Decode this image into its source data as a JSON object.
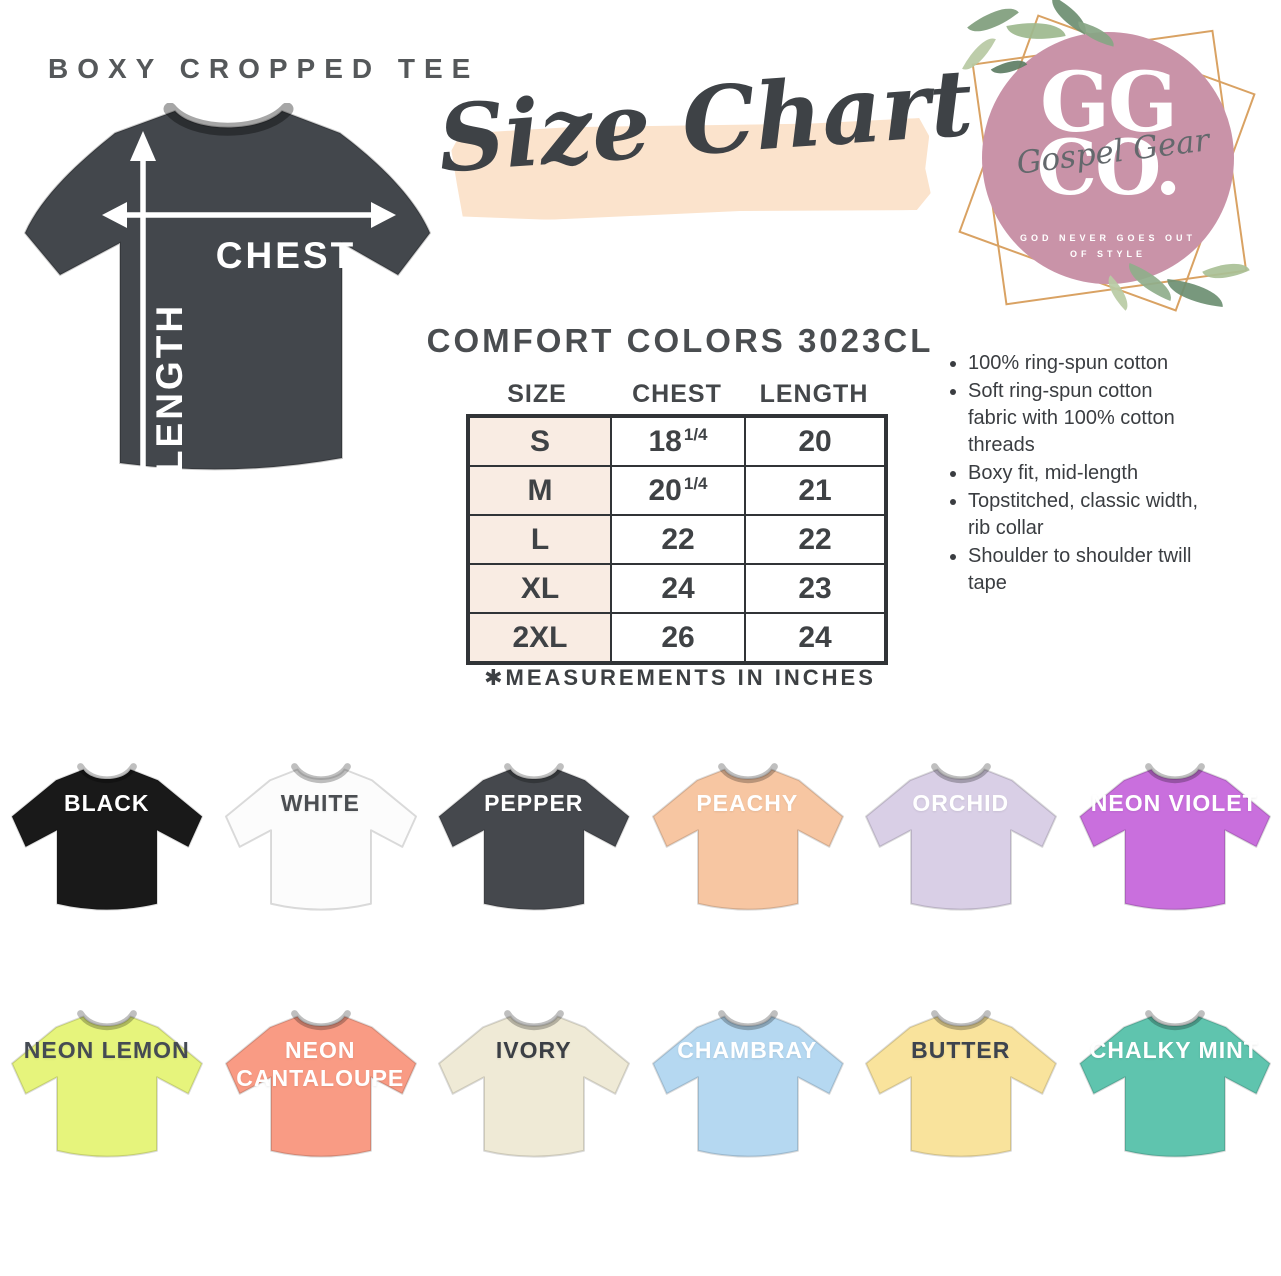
{
  "page": {
    "title": "BOXY CROPPED TEE"
  },
  "header": {
    "script_title": "Size Chart"
  },
  "diagram": {
    "chest_label": "CHEST",
    "length_label": "LENGTH"
  },
  "logo": {
    "initials_top": "GG",
    "initials_bottom": "CO.",
    "script": "Gospel Gear",
    "tagline_line1": "GOD NEVER GOES OUT",
    "tagline_line2": "OF STYLE"
  },
  "size_chart": {
    "product_title": "COMFORT COLORS 3023CL",
    "columns": [
      "SIZE",
      "CHEST",
      "LENGTH"
    ],
    "rows": [
      {
        "size": "S",
        "chest": "18",
        "chest_frac": "1/4",
        "length": "20"
      },
      {
        "size": "M",
        "chest": "20",
        "chest_frac": "1/4",
        "length": "21"
      },
      {
        "size": "L",
        "chest": "22",
        "chest_frac": "",
        "length": "22"
      },
      {
        "size": "XL",
        "chest": "24",
        "chest_frac": "",
        "length": "23"
      },
      {
        "size": "2XL",
        "chest": "26",
        "chest_frac": "",
        "length": "24"
      }
    ],
    "footnote": "✱MEASUREMENTS IN INCHES"
  },
  "features": [
    "100% ring-spun cotton",
    "Soft ring-spun cotton fabric with 100% cotton threads",
    "Boxy fit, mid-length",
    "Topstitched, classic width, rib collar",
    "Shoulder to shoulder twill tape"
  ],
  "swatches": {
    "rows": [
      [
        {
          "name": "BLACK",
          "color": "#191919",
          "text_color": "#ffffff"
        },
        {
          "name": "WHITE",
          "color": "#fcfcfc",
          "text_color": "#4b4e52"
        },
        {
          "name": "PEPPER",
          "color": "#45484d",
          "text_color": "#ffffff"
        },
        {
          "name": "PEACHY",
          "color": "#f7c6a2",
          "text_color": "#ffffff"
        },
        {
          "name": "ORCHID",
          "color": "#d9cfe6",
          "text_color": "#ffffff"
        },
        {
          "name": "NEON VIOLET",
          "color": "#c96fdd",
          "text_color": "#ffffff"
        }
      ],
      [
        {
          "name": "NEON LEMON",
          "color": "#e6f47c",
          "text_color": "#454b53"
        },
        {
          "name": "NEON CANTALOUPE",
          "color": "#f99b84",
          "text_color": "#ffffff"
        },
        {
          "name": "IVORY",
          "color": "#efead6",
          "text_color": "#3b3f45"
        },
        {
          "name": "CHAMBRAY",
          "color": "#b5d8f1",
          "text_color": "#ffffff"
        },
        {
          "name": "BUTTER",
          "color": "#f9e39c",
          "text_color": "#3d434e"
        },
        {
          "name": "CHALKY MINT",
          "color": "#5fc4ae",
          "text_color": "#ffffff"
        }
      ]
    ]
  },
  "chart_data": {
    "type": "table",
    "title": "COMFORT COLORS 3023CL",
    "columns": [
      "SIZE",
      "CHEST",
      "LENGTH"
    ],
    "rows": [
      [
        "S",
        "18 1/4",
        "20"
      ],
      [
        "M",
        "20 1/4",
        "21"
      ],
      [
        "L",
        "22",
        "22"
      ],
      [
        "XL",
        "24",
        "23"
      ],
      [
        "2XL",
        "26",
        "24"
      ]
    ],
    "units": "inches"
  },
  "theme": {
    "brush": "#fbe3cc",
    "logo_pink": "#c993a8",
    "gold": "#d9a263",
    "table_row_bg": "#f9ece3",
    "diagram_shirt": "#43474c"
  }
}
